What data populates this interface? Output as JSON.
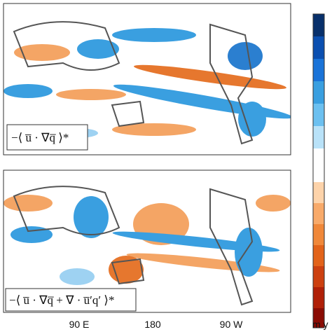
{
  "panels": [
    {
      "label": "−⟨ u̅ · ∇q̅ ⟩*"
    },
    {
      "label": "−⟨ u̅ · ∇q̅ + ∇ · u̅′q′ ⟩*"
    }
  ],
  "longitude_labels": [
    "90 E",
    "180",
    "90 W"
  ],
  "colorbar": {
    "unit": "m y"
  }
}
